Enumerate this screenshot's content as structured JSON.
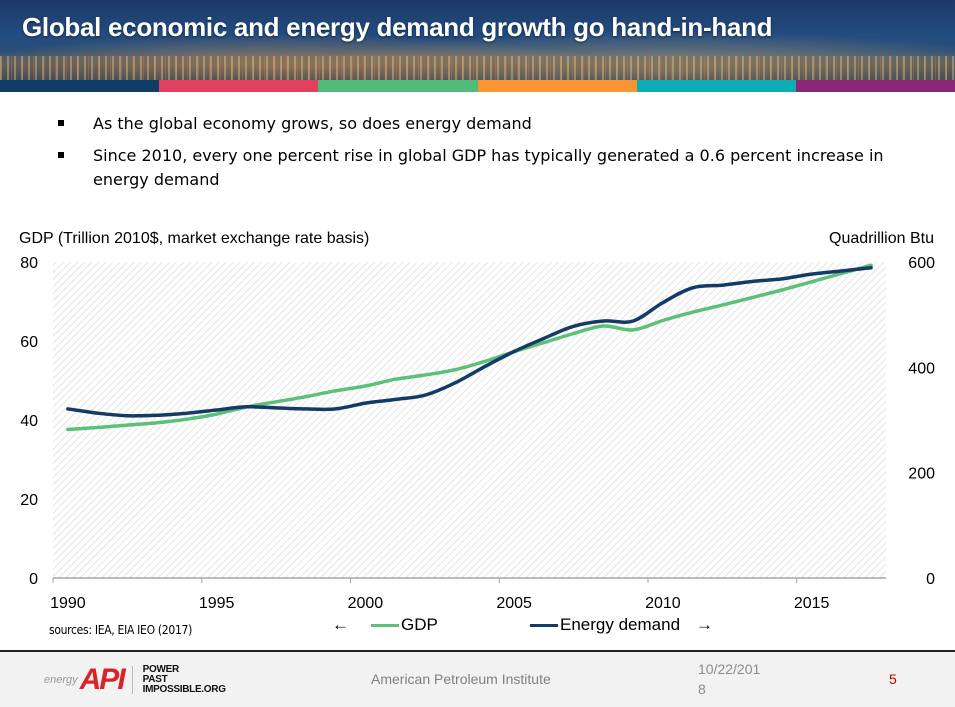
{
  "slide": {
    "title": "Global economic and energy demand growth go hand-in-hand",
    "color_bar": [
      "#0f3d66",
      "#e23e5f",
      "#51bb7a",
      "#fb9433",
      "#0eadb6",
      "#8a2877"
    ],
    "bullets": [
      "As the global economy grows, so does energy demand",
      "Since 2010, every one percent rise in global GDP has typically generated a 0.6 percent increase in energy demand"
    ],
    "sources": "sources: IEA, EIA IEO (2017)",
    "legend": {
      "left_arrow": "←",
      "right_arrow": "→"
    }
  },
  "footer": {
    "logo_energy": "energy",
    "logo_api": "API",
    "logo_tagline": [
      "POWER",
      "PAST",
      "IMPOSSIBLE.ORG"
    ],
    "organization": "American Petroleum Institute",
    "date": "10/22/2018",
    "page_number": "5"
  },
  "chart_data": {
    "type": "line",
    "title": "",
    "xlabel": "",
    "ylabel": "GDP (Trillion 2010$, market exchange rate basis)",
    "y2label": "Quadrillion Btu",
    "x": [
      1990,
      1991,
      1992,
      1993,
      1994,
      1995,
      1996,
      1997,
      1998,
      1999,
      2000,
      2001,
      2002,
      2003,
      2004,
      2005,
      2006,
      2007,
      2008,
      2009,
      2010,
      2011,
      2012,
      2013,
      2014,
      2015,
      2016,
      2017
    ],
    "x_tick_labels": [
      "1990",
      "1995",
      "2000",
      "2005",
      "2010",
      "2015"
    ],
    "ylim": [
      0,
      80
    ],
    "y_ticks": [
      0,
      20,
      40,
      60,
      80
    ],
    "y2lim": [
      0,
      600
    ],
    "y2_ticks": [
      0,
      200,
      400,
      600
    ],
    "grid": false,
    "legend_position": "bottom",
    "series": [
      {
        "name": "GDP",
        "axis": "left",
        "color": "#5cbf7a",
        "values": [
          37.6,
          38.1,
          38.7,
          39.3,
          40.2,
          41.5,
          43.3,
          44.6,
          45.9,
          47.4,
          48.6,
          50.3,
          51.4,
          52.7,
          54.8,
          57.3,
          59.6,
          61.9,
          63.8,
          62.8,
          65.2,
          67.3,
          69.1,
          71.0,
          72.9,
          75.0,
          77.1,
          79.2
        ]
      },
      {
        "name": "Energy demand",
        "axis": "right",
        "color": "#143b66",
        "values": [
          321,
          313,
          308,
          309,
          313,
          319,
          325,
          323,
          321,
          321,
          332,
          339,
          347,
          370,
          401,
          430,
          455,
          478,
          488,
          488,
          523,
          551,
          556,
          563,
          568,
          577,
          583,
          589
        ]
      }
    ]
  }
}
